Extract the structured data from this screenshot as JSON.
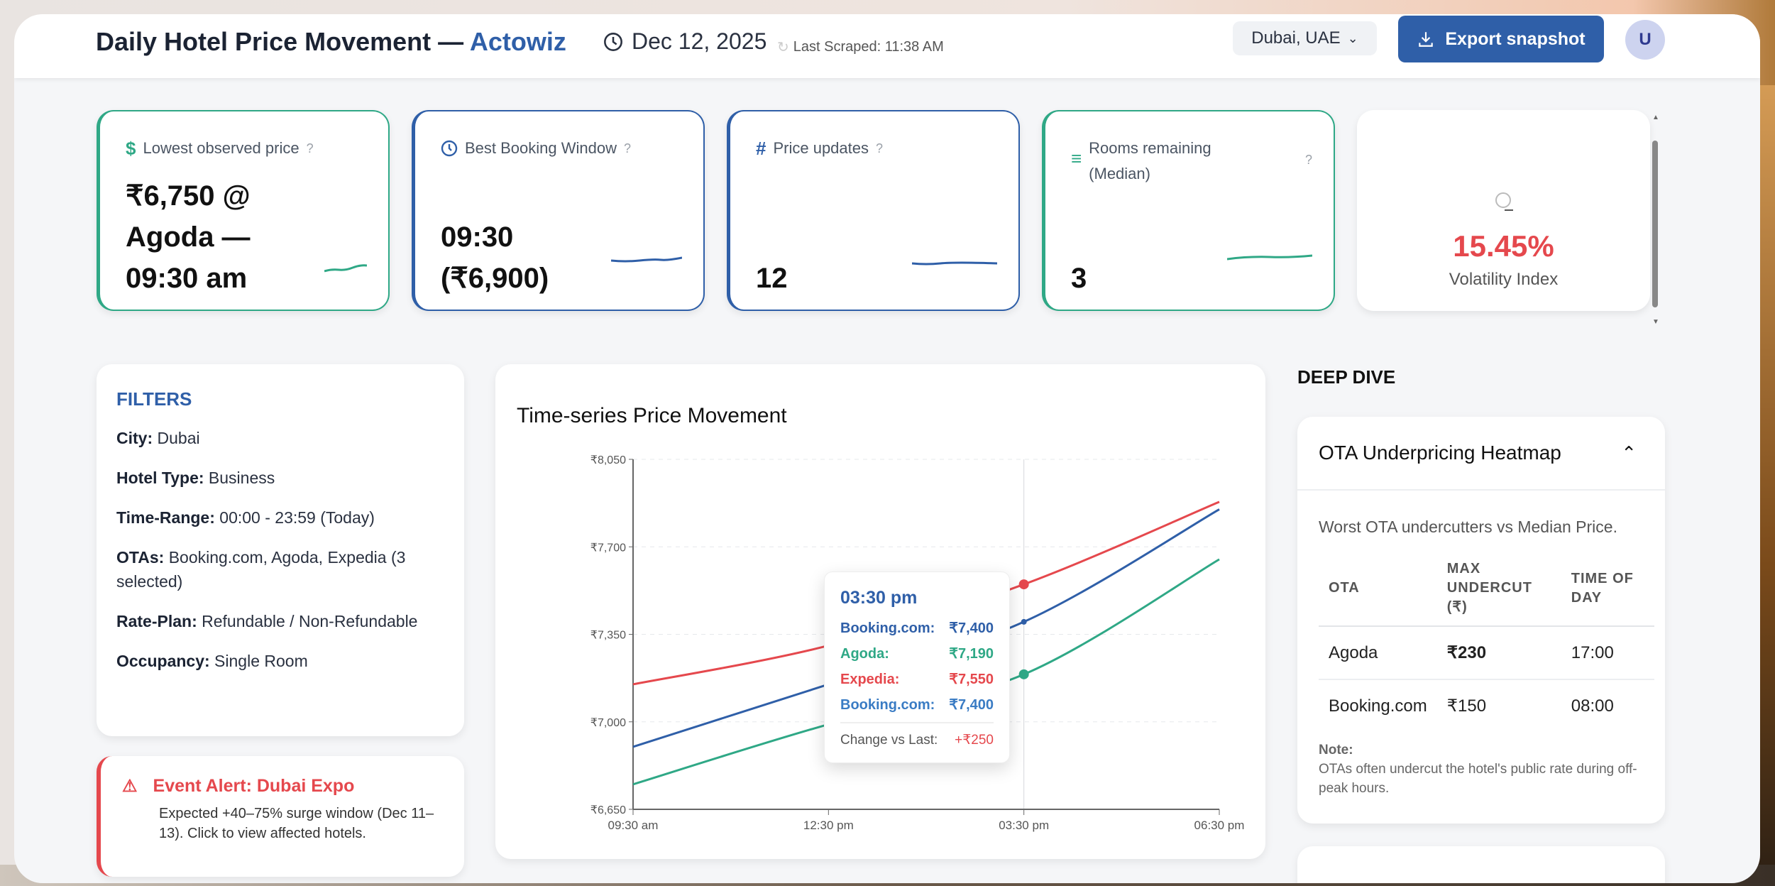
{
  "header": {
    "title": "Daily Hotel Price Movement — ",
    "brand": "Actowiz",
    "date": "Dec 12, 2025",
    "last_scraped": "Last Scraped: 11:38 AM",
    "city": "Dubai, UAE",
    "export_label": "Export snapshot",
    "avatar": "U"
  },
  "kpis": [
    {
      "label": "Lowest observed price",
      "help": "?",
      "value_lines": [
        "₹6,750 @",
        "Agoda —",
        "09:30 am"
      ],
      "color": "#2fa886"
    },
    {
      "label": "Best Booking Window",
      "help": "?",
      "value_lines": [
        "09:30",
        "(₹6,900)"
      ],
      "color": "#2f5fa8"
    },
    {
      "label": "Price updates",
      "help": "?",
      "value_lines": [
        "12"
      ],
      "color": "#2f5fa8"
    },
    {
      "label": "Rooms remaining (Median)",
      "help": "?",
      "value_lines": [
        "3"
      ],
      "color": "#2fa886"
    }
  ],
  "volatility": {
    "value": "15.45%",
    "label": "Volatility Index",
    "color": "#e5484d"
  },
  "filters": {
    "title": "FILTERS",
    "rows": [
      {
        "key": "City:",
        "value": "Dubai"
      },
      {
        "key": "Hotel Type:",
        "value": "Business"
      },
      {
        "key": "Time-Range:",
        "value": "00:00 - 23:59 (Today)"
      },
      {
        "key": "OTAs:",
        "value": "Booking.com, Agoda, Expedia (3 selected)"
      },
      {
        "key": "Rate-Plan:",
        "value": "Refundable / Non-Refundable"
      },
      {
        "key": "Occupancy:",
        "value": "Single Room"
      }
    ]
  },
  "alert": {
    "title": "Event Alert: Dubai Expo",
    "text": "Expected +40–75% surge window (Dec 11–13). Click to view affected hotels."
  },
  "chart_data": {
    "type": "line",
    "title": "Time-series Price Movement",
    "x": [
      "09:30 am",
      "12:30 pm",
      "03:30 pm",
      "06:30 pm"
    ],
    "y_ticks": [
      "₹6,650",
      "₹7,000",
      "₹7,350",
      "₹7,700",
      "₹8,050"
    ],
    "ylim": [
      6650,
      8050
    ],
    "grid": true,
    "series": [
      {
        "name": "Expedia",
        "color": "#e5484d",
        "values": [
          7150,
          7305,
          7550,
          7880
        ]
      },
      {
        "name": "Booking.com",
        "color": "#2f5fa8",
        "values": [
          6900,
          7150,
          7400,
          7850
        ]
      },
      {
        "name": "Agoda",
        "color": "#2fa886",
        "values": [
          6750,
          6990,
          7190,
          7650
        ]
      }
    ],
    "tooltip": {
      "time": "03:30 pm",
      "rows": [
        {
          "name": "Booking.com:",
          "value": "₹7,400",
          "color": "#2f5fa8"
        },
        {
          "name": "Agoda:",
          "value": "₹7,190",
          "color": "#2fa886"
        },
        {
          "name": "Expedia:",
          "value": "₹7,550",
          "color": "#e5484d"
        },
        {
          "name": "Booking.com:",
          "value": "₹7,400",
          "color": "#3a7cc4"
        }
      ],
      "change_label": "Change vs Last:",
      "change_value": "+₹250"
    }
  },
  "deep_dive": {
    "title": "DEEP DIVE",
    "heatmap": {
      "title": "OTA Underpricing Heatmap",
      "subtitle": "Worst OTA undercutters vs Median Price.",
      "columns": [
        "OTA",
        "MAX UNDERCUT (₹)",
        "TIME OF DAY"
      ],
      "rows": [
        [
          "Agoda",
          "₹230",
          "17:00"
        ],
        [
          "Booking.com",
          "₹150",
          "08:00"
        ]
      ],
      "note_label": "Note:",
      "note": "OTAs often undercut the hotel's public rate during off-peak hours."
    }
  }
}
